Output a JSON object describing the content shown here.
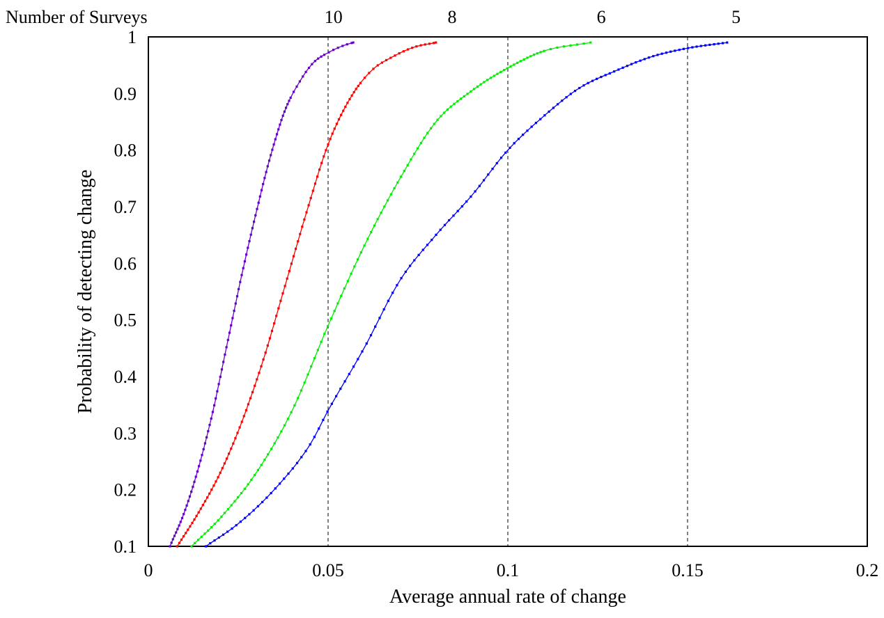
{
  "chart_data": {
    "type": "line",
    "title": "",
    "legend_title": "Number of Surveys",
    "xlabel": "Average annual rate of change",
    "ylabel": "Probability of detecting change",
    "xlim": [
      0,
      0.2
    ],
    "ylim": [
      0.1,
      1
    ],
    "x_ticks": [
      "0",
      "0.05",
      "0.1",
      "0.15",
      "0.2"
    ],
    "y_ticks": [
      "0.1",
      "0.2",
      "0.3",
      "0.4",
      "0.5",
      "0.6",
      "0.7",
      "0.8",
      "0.9",
      "1"
    ],
    "grid": false,
    "reference_lines_x": [
      0.05,
      0.1,
      0.15
    ],
    "top_labels": [
      {
        "label": "10",
        "x": 0.0515
      },
      {
        "label": "8",
        "x": 0.0845
      },
      {
        "label": "6",
        "x": 0.126
      },
      {
        "label": "5",
        "x": 0.1635
      }
    ],
    "series": [
      {
        "name": "10",
        "color": "#6600cc",
        "x": [
          0.006,
          0.01,
          0.014,
          0.018,
          0.022,
          0.026,
          0.03,
          0.034,
          0.038,
          0.042,
          0.046,
          0.05,
          0.054,
          0.057
        ],
        "y": [
          0.1,
          0.16,
          0.24,
          0.34,
          0.46,
          0.58,
          0.69,
          0.79,
          0.87,
          0.92,
          0.955,
          0.972,
          0.984,
          0.99
        ]
      },
      {
        "name": "8",
        "color": "#ff0000",
        "x": [
          0.008,
          0.014,
          0.02,
          0.026,
          0.032,
          0.038,
          0.044,
          0.05,
          0.056,
          0.062,
          0.068,
          0.074,
          0.08
        ],
        "y": [
          0.1,
          0.16,
          0.23,
          0.32,
          0.43,
          0.56,
          0.69,
          0.81,
          0.89,
          0.94,
          0.965,
          0.982,
          0.99
        ]
      },
      {
        "name": "6",
        "color": "#00ee00",
        "x": [
          0.012,
          0.02,
          0.03,
          0.04,
          0.05,
          0.06,
          0.07,
          0.08,
          0.09,
          0.1,
          0.11,
          0.123
        ],
        "y": [
          0.1,
          0.15,
          0.23,
          0.34,
          0.49,
          0.63,
          0.75,
          0.85,
          0.905,
          0.945,
          0.975,
          0.99
        ]
      },
      {
        "name": "5",
        "color": "#0000ff",
        "x": [
          0.016,
          0.025,
          0.035,
          0.045,
          0.05,
          0.06,
          0.07,
          0.08,
          0.09,
          0.1,
          0.11,
          0.12,
          0.13,
          0.14,
          0.15,
          0.161
        ],
        "y": [
          0.1,
          0.14,
          0.2,
          0.28,
          0.34,
          0.45,
          0.57,
          0.65,
          0.72,
          0.8,
          0.86,
          0.91,
          0.94,
          0.965,
          0.98,
          0.99
        ]
      }
    ]
  }
}
